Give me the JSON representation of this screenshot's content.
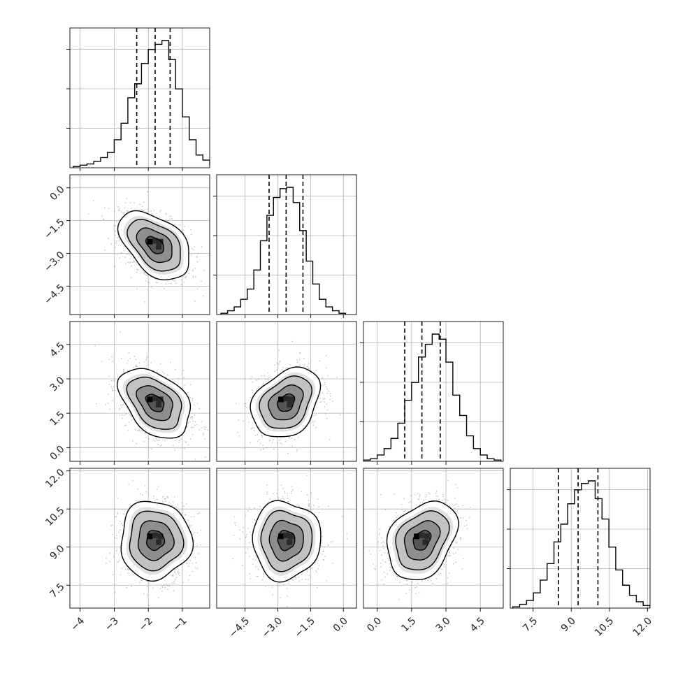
{
  "chart_data": {
    "type": "corner",
    "description_note": "",
    "parameters": [
      {
        "key": "p0",
        "range": [
          -4.3,
          -0.2
        ],
        "ticks": [
          -4,
          -3,
          -2,
          -1
        ],
        "tick_labels": [
          "−4",
          "−3",
          "−2",
          "−1"
        ],
        "quantiles": [
          -2.34,
          -1.8,
          -1.36
        ],
        "mean": -1.8,
        "sd": 0.52,
        "hist": {
          "bin_start": -4.2,
          "bin_width": 0.2,
          "counts": [
            0.01,
            0.02,
            0.03,
            0.05,
            0.08,
            0.12,
            0.22,
            0.35,
            0.55,
            0.66,
            0.82,
            0.93,
            0.97,
            1.0,
            0.85,
            0.62,
            0.4,
            0.22,
            0.1,
            0.06,
            0.02,
            0.01
          ]
        }
      },
      {
        "key": "p1",
        "range": [
          -5.8,
          0.6
        ],
        "ticks": [
          -4.5,
          -3.0,
          -1.5,
          0.0
        ],
        "tick_labels": [
          "−4.5",
          "−3.0",
          "−1.5",
          "0.0"
        ],
        "quantiles": [
          -3.4,
          -2.62,
          -1.85
        ],
        "mean": -2.62,
        "sd": 0.78,
        "hist": {
          "bin_start": -5.6,
          "bin_width": 0.3,
          "counts": [
            0.01,
            0.03,
            0.06,
            0.12,
            0.2,
            0.35,
            0.58,
            0.78,
            0.92,
            0.99,
            1.0,
            0.88,
            0.66,
            0.42,
            0.24,
            0.12,
            0.06,
            0.03,
            0.01
          ]
        }
      },
      {
        "key": "p2",
        "range": [
          -0.6,
          5.5
        ],
        "ticks": [
          0.0,
          1.5,
          3.0,
          4.5
        ],
        "tick_labels": [
          "0.0",
          "1.5",
          "3.0",
          "4.5"
        ],
        "quantiles": [
          1.2,
          1.95,
          2.75
        ],
        "mean": 1.95,
        "sd": 0.76,
        "hist": {
          "bin_start": -0.6,
          "bin_width": 0.3,
          "counts": [
            0.01,
            0.02,
            0.05,
            0.1,
            0.18,
            0.3,
            0.48,
            0.62,
            0.82,
            0.92,
            1.0,
            0.96,
            0.78,
            0.52,
            0.36,
            0.2,
            0.1,
            0.05,
            0.02,
            0.01
          ]
        }
      },
      {
        "key": "p3",
        "range": [
          6.6,
          12.1
        ],
        "ticks": [
          7.5,
          9.0,
          10.5,
          12.0
        ],
        "tick_labels": [
          "7.5",
          "9.0",
          "10.5",
          "12.0"
        ],
        "quantiles": [
          8.5,
          9.27,
          10.05
        ],
        "mean": 9.27,
        "sd": 0.77,
        "hist": {
          "bin_start": 6.7,
          "bin_width": 0.27,
          "counts": [
            0.01,
            0.03,
            0.06,
            0.12,
            0.22,
            0.35,
            0.52,
            0.66,
            0.82,
            0.93,
            0.98,
            1.0,
            0.86,
            0.7,
            0.48,
            0.3,
            0.18,
            0.1,
            0.05,
            0.02,
            0.01
          ]
        }
      }
    ],
    "correlations": {
      "1-0": -0.45,
      "2-0": -0.4,
      "2-1": 0.3,
      "3-0": 0.0,
      "3-1": 0.0,
      "3-2": 0.3
    },
    "contour_levels_sigma": [
      0.5,
      1.0,
      1.5,
      2.0
    ],
    "grid": true,
    "quantile_lines": "dashed"
  },
  "colors": {
    "hist_line": "#000000",
    "grid": "#b0b0b0",
    "axes": "#000000",
    "scatter": "#9a9a9a"
  }
}
